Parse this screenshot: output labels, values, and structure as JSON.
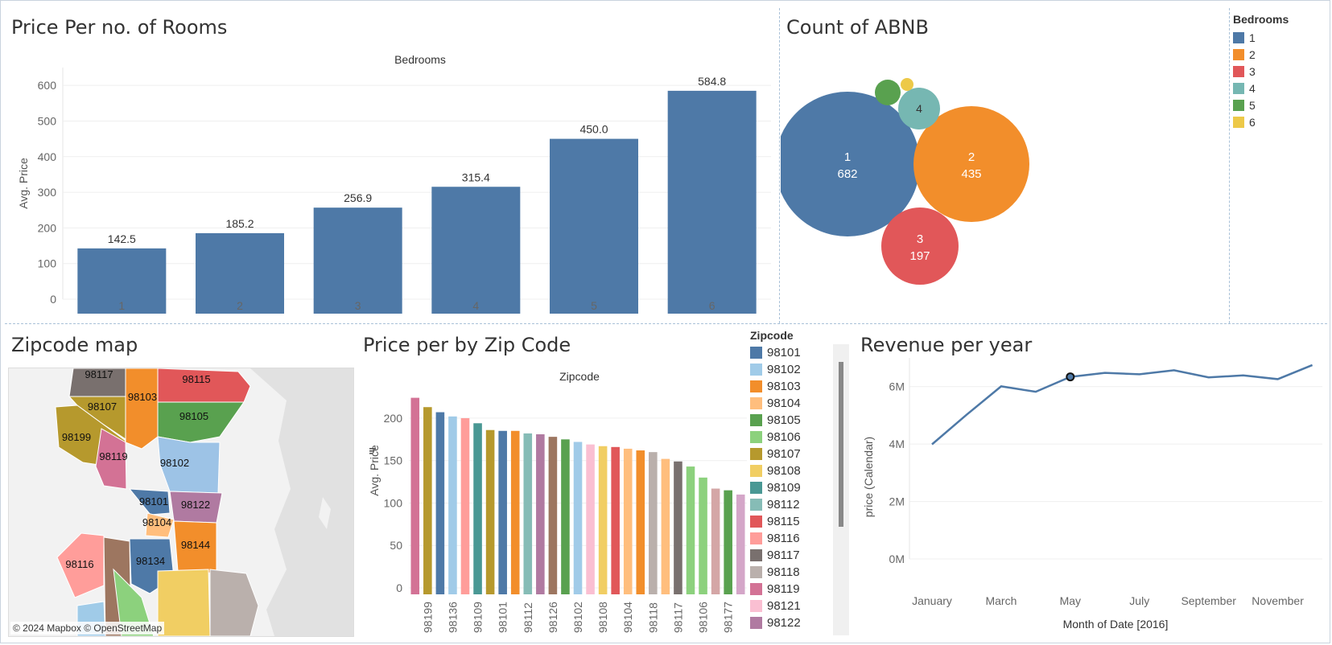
{
  "bar_chart": {
    "title": "Price Per no. of Rooms",
    "header": "Bedrooms",
    "ylabel": "Avg. Price",
    "yticks": [
      "0",
      "100",
      "200",
      "300",
      "400",
      "500",
      "600"
    ],
    "chart_data": {
      "type": "bar",
      "categories": [
        "1",
        "2",
        "3",
        "4",
        "5",
        "6"
      ],
      "values": [
        142.5,
        185.2,
        256.9,
        315.4,
        450.0,
        584.8
      ],
      "labels": [
        "142.5",
        "185.2",
        "256.9",
        "315.4",
        "450.0",
        "584.8"
      ],
      "ylim": [
        0,
        650
      ],
      "color": "#4e79a7"
    }
  },
  "bubble_chart": {
    "title": "Count of ABNB",
    "chart_data": {
      "type": "bubble",
      "bubbles": [
        {
          "name": "1",
          "value": 682,
          "name_label": "1",
          "value_label": "682",
          "color": "#4e79a7"
        },
        {
          "name": "2",
          "value": 435,
          "name_label": "2",
          "value_label": "435",
          "color": "#f28e2b"
        },
        {
          "name": "3",
          "value": 197,
          "name_label": "3",
          "value_label": "197",
          "color": "#e15759"
        },
        {
          "name": "4",
          "value": null,
          "name_label": "4",
          "value_label": "",
          "color": "#76b7b2"
        },
        {
          "name": "5",
          "value": null,
          "name_label": "",
          "value_label": "",
          "color": "#59a14f"
        },
        {
          "name": "6",
          "value": null,
          "name_label": "",
          "value_label": "",
          "color": "#edc948"
        }
      ]
    }
  },
  "bedrooms_legend": {
    "title": "Bedrooms",
    "items": [
      {
        "label": "1",
        "color": "#4e79a7"
      },
      {
        "label": "2",
        "color": "#f28e2b"
      },
      {
        "label": "3",
        "color": "#e15759"
      },
      {
        "label": "4",
        "color": "#76b7b2"
      },
      {
        "label": "5",
        "color": "#59a14f"
      },
      {
        "label": "6",
        "color": "#edc948"
      }
    ]
  },
  "map": {
    "title": "Zipcode map",
    "credit": "© 2024 Mapbox © OpenStreetMap",
    "regions": [
      {
        "zip": "98117",
        "color": "#79706e"
      },
      {
        "zip": "98115",
        "color": "#e15759"
      },
      {
        "zip": "98103",
        "color": "#f28e2b"
      },
      {
        "zip": "98107",
        "color": "#b6992d"
      },
      {
        "zip": "98105",
        "color": "#59a14f"
      },
      {
        "zip": "98199",
        "color": "#b6992d"
      },
      {
        "zip": "98119",
        "color": "#d37295"
      },
      {
        "zip": "98102",
        "color": "#9dc3e6"
      },
      {
        "zip": "98101",
        "color": "#4e79a7"
      },
      {
        "zip": "98122",
        "color": "#b07aa1"
      },
      {
        "zip": "98104",
        "color": "#ffbe7d"
      },
      {
        "zip": "98144",
        "color": "#f28e2b"
      },
      {
        "zip": "98116",
        "color": "#ff9d9a"
      },
      {
        "zip": "98134",
        "color": "#4e79a7"
      }
    ]
  },
  "zip_chart": {
    "title": "Price per by Zip Code",
    "header": "Zipcode",
    "ylabel": "Avg. Price",
    "yticks": [
      "0",
      "50",
      "100",
      "150",
      "200"
    ],
    "chart_data": {
      "type": "bar",
      "ylim": [
        0,
        235
      ],
      "bars": [
        {
          "label": "",
          "value": 224,
          "color": "#d37295"
        },
        {
          "label": "98199",
          "value": 213,
          "color": "#b6992d"
        },
        {
          "label": "",
          "value": 207,
          "color": "#4e79a7"
        },
        {
          "label": "98136",
          "value": 202,
          "color": "#a0cbe8"
        },
        {
          "label": "",
          "value": 200,
          "color": "#ff9d9a"
        },
        {
          "label": "98109",
          "value": 194,
          "color": "#499894"
        },
        {
          "label": "",
          "value": 186,
          "color": "#b6992d"
        },
        {
          "label": "98101",
          "value": 185,
          "color": "#4e79a7"
        },
        {
          "label": "",
          "value": 185,
          "color": "#f28e2b"
        },
        {
          "label": "98112",
          "value": 182,
          "color": "#86bcb6"
        },
        {
          "label": "",
          "value": 181,
          "color": "#b07aa1"
        },
        {
          "label": "98126",
          "value": 178,
          "color": "#9d7660"
        },
        {
          "label": "",
          "value": 175,
          "color": "#59a14f"
        },
        {
          "label": "98102",
          "value": 172,
          "color": "#a0cbe8"
        },
        {
          "label": "",
          "value": 169,
          "color": "#fabfd2"
        },
        {
          "label": "98108",
          "value": 167,
          "color": "#f1ce63"
        },
        {
          "label": "",
          "value": 166,
          "color": "#e15759"
        },
        {
          "label": "98104",
          "value": 164,
          "color": "#ffbe7d"
        },
        {
          "label": "",
          "value": 162,
          "color": "#f28e2b"
        },
        {
          "label": "98118",
          "value": 160,
          "color": "#bab0ac"
        },
        {
          "label": "",
          "value": 152,
          "color": "#ffbe7d"
        },
        {
          "label": "98117",
          "value": 149,
          "color": "#79706e"
        },
        {
          "label": "",
          "value": 143,
          "color": "#8cd17d"
        },
        {
          "label": "98106",
          "value": 130,
          "color": "#8cd17d"
        },
        {
          "label": "",
          "value": 117,
          "color": "#d4a6a6"
        },
        {
          "label": "98177",
          "value": 115,
          "color": "#59a14f"
        },
        {
          "label": "",
          "value": 110,
          "color": "#d4a6c8"
        }
      ]
    }
  },
  "zip_legend": {
    "title": "Zipcode",
    "items": [
      {
        "label": "98101",
        "color": "#4e79a7"
      },
      {
        "label": "98102",
        "color": "#a0cbe8"
      },
      {
        "label": "98103",
        "color": "#f28e2b"
      },
      {
        "label": "98104",
        "color": "#ffbe7d"
      },
      {
        "label": "98105",
        "color": "#59a14f"
      },
      {
        "label": "98106",
        "color": "#8cd17d"
      },
      {
        "label": "98107",
        "color": "#b6992d"
      },
      {
        "label": "98108",
        "color": "#f1ce63"
      },
      {
        "label": "98109",
        "color": "#499894"
      },
      {
        "label": "98112",
        "color": "#86bcb6"
      },
      {
        "label": "98115",
        "color": "#e15759"
      },
      {
        "label": "98116",
        "color": "#ff9d9a"
      },
      {
        "label": "98117",
        "color": "#79706e"
      },
      {
        "label": "98118",
        "color": "#bab0ac"
      },
      {
        "label": "98119",
        "color": "#d37295"
      },
      {
        "label": "98121",
        "color": "#fabfd2"
      },
      {
        "label": "98122",
        "color": "#b07aa1"
      }
    ]
  },
  "line_chart": {
    "title": "Revenue per year",
    "ylabel": "price (Calendar)",
    "xlabel": "Month of Date [2016]",
    "yticks": [
      {
        "label": "0M",
        "value": 0
      },
      {
        "label": "2M",
        "value": 2000000
      },
      {
        "label": "4M",
        "value": 4000000
      },
      {
        "label": "6M",
        "value": 6000000
      }
    ],
    "xticks": [
      {
        "label": "January",
        "index": 0
      },
      {
        "label": "March",
        "index": 2
      },
      {
        "label": "May",
        "index": 4
      },
      {
        "label": "July",
        "index": 6
      },
      {
        "label": "September",
        "index": 8
      },
      {
        "label": "November",
        "index": 10
      }
    ],
    "chart_data": {
      "type": "line",
      "x": [
        "January",
        "February",
        "March",
        "April",
        "May",
        "June",
        "July",
        "August",
        "September",
        "October",
        "November",
        "December"
      ],
      "values": [
        3990000,
        5020000,
        6010000,
        5820000,
        6340000,
        6480000,
        6430000,
        6570000,
        6320000,
        6390000,
        6260000,
        6750000
      ],
      "ylim": [
        0,
        7000000
      ],
      "highlight_index": 4,
      "color": "#4e79a7"
    }
  }
}
